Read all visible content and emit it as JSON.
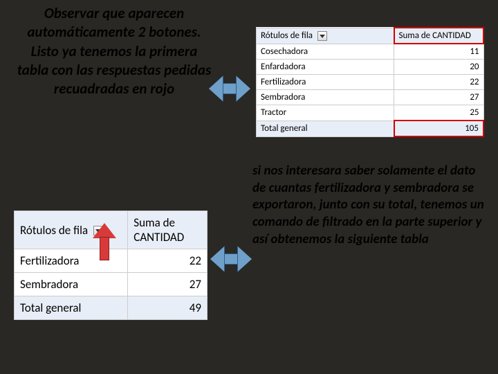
{
  "text1": "Observar que aparecen automáticamente 2 botones.\nListo ya tenemos la primera tabla con las respuestas pedidas recuadradas en rojo",
  "text2": "si nos interesara saber solamente el dato de cuantas fertilizadora y sembradora se exportaron, junto con su total, tenemos un comando de filtrado en la parte superior y así obtenemos la siguiente tabla",
  "table1": {
    "header_col1": "Rótulos de fila",
    "header_col2": "Suma de CANTIDAD",
    "rows": [
      {
        "label": "Cosechadora",
        "value": 11
      },
      {
        "label": "Enfardadora",
        "value": 20
      },
      {
        "label": "Fertilizadora",
        "value": 22
      },
      {
        "label": "Sembradora",
        "value": 27
      },
      {
        "label": "Tractor",
        "value": 25
      }
    ],
    "total_label": "Total general",
    "total_value": 105
  },
  "table2": {
    "header_col1": "Rótulos de fila",
    "header_col2": "Suma de CANTIDAD",
    "rows": [
      {
        "label": "Fertilizadora",
        "value": 22
      },
      {
        "label": "Sembradora",
        "value": 27
      }
    ],
    "total_label": "Total general",
    "total_value": 49
  },
  "colors": {
    "background": "#2a2824",
    "table_header_bg": "#e8eef7",
    "highlight_border": "#d00000",
    "arrow_fill": "#6ea0c9",
    "arrow_border": "#2f5f8a",
    "red_arrow_fill": "#d83a3a"
  }
}
